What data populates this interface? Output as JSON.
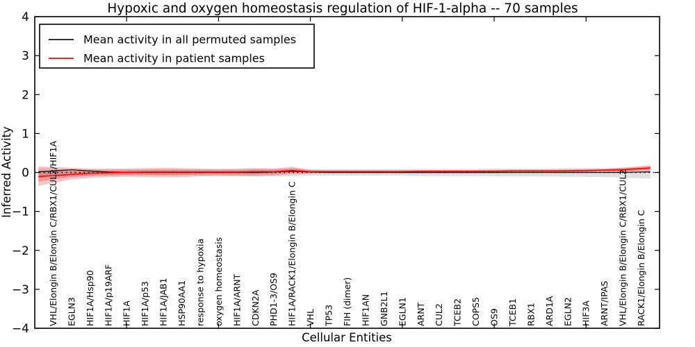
{
  "figure": {
    "title": "Hypoxic and oxygen homeostasis regulation of HIF-1-alpha -- 70 samples",
    "xlabel": "Cellular Entities",
    "ylabel": "Inferred Activity"
  },
  "legend": {
    "position": "upper left",
    "items": [
      {
        "label": "Mean activity in all permuted samples",
        "color": "#111111"
      },
      {
        "label": "Mean activity in patient samples",
        "color": "#ff0000"
      }
    ]
  },
  "axes": {
    "y_tick_labels": [
      "4",
      "3",
      "2",
      "1",
      "0",
      "−1",
      "−2",
      "−3",
      "−4"
    ],
    "y_tick_values": [
      4,
      3,
      2,
      1,
      0,
      -1,
      -2,
      -3,
      -4
    ],
    "x_tick_values": [
      5,
      10,
      15,
      20,
      25,
      30
    ]
  },
  "chart_data": {
    "type": "line",
    "title": "Hypoxic and oxygen homeostasis regulation of HIF-1-alpha -- 70 samples",
    "xlabel": "Cellular Entities",
    "ylabel": "Inferred Activity",
    "ylim": [
      -4,
      4
    ],
    "xlim": [
      0,
      34
    ],
    "grid": false,
    "zero_line_style": "dotted",
    "legend_position": "upper left",
    "categories": [
      "VHL/Elongin B/Elongin C/RBX1/CUL2/HIF1A",
      "EGLN3",
      "HIF1A/Hsp90",
      "HIF1A/p19ARF",
      "HIF1A",
      "HIF1A/p53",
      "HIF1A/JAB1",
      "HSP90AA1",
      "response to hypoxia",
      "oxygen homeostasis",
      "HIF1A/ARNT",
      "CDKN2A",
      "PHD1-3/OS9",
      "HIF1A/RACK1/Elongin B/Elongin C",
      "VHL",
      "TP53",
      "FIH (dimer)",
      "HIF1AN",
      "GNB2L1",
      "EGLN1",
      "ARNT",
      "CUL2",
      "TCEB2",
      "COPS5",
      "OS9",
      "TCEB1",
      "RBX1",
      "ARD1A",
      "EGLN2",
      "HIF3A",
      "ARNT/IPAS",
      "VHL/Elongin B/Elongin C/RBX1/CUL2",
      "RACK1/Elongin B/Elongin C"
    ],
    "series": [
      {
        "name": "Mean activity in all permuted samples",
        "color": "#111111",
        "values": [
          0.04,
          0.07,
          0.04,
          0.01,
          0,
          0,
          0,
          0,
          0,
          0,
          0,
          0,
          0.01,
          0.03,
          0.01,
          0,
          0,
          0,
          0,
          0,
          0,
          0,
          0,
          0,
          0,
          0,
          0,
          0,
          0,
          0,
          0,
          0,
          0.01
        ]
      },
      {
        "name": "Mean activity in patient samples",
        "color": "#ff0000",
        "values": [
          -0.08,
          -0.05,
          -0.02,
          -0.01,
          0,
          0.01,
          0.01,
          0.01,
          0.01,
          0.01,
          0.01,
          0.02,
          0.02,
          0.05,
          0.02,
          0.02,
          0.02,
          0.02,
          0.02,
          0.02,
          0.03,
          0.03,
          0.03,
          0.03,
          0.03,
          0.04,
          0.04,
          0.04,
          0.04,
          0.05,
          0.06,
          0.07,
          0.1
        ]
      }
    ],
    "bands": [
      {
        "name": "permuted samples range",
        "color": "#999999",
        "upper": [
          0.1,
          0.09,
          0.08,
          0.08,
          0.08,
          0.08,
          0.08,
          0.08,
          0.08,
          0.08,
          0.08,
          0.09,
          0.09,
          0.1,
          0.08,
          0.08,
          0.08,
          0.08,
          0.08,
          0.08,
          0.09,
          0.09,
          0.09,
          0.09,
          0.1,
          0.1,
          0.1,
          0.1,
          0.11,
          0.11,
          0.11,
          0.12,
          0.13
        ],
        "lower": [
          -0.12,
          -0.1,
          -0.09,
          -0.08,
          -0.08,
          -0.08,
          -0.08,
          -0.08,
          -0.08,
          -0.08,
          -0.08,
          -0.09,
          -0.09,
          -0.1,
          -0.08,
          -0.08,
          -0.08,
          -0.08,
          -0.08,
          -0.08,
          -0.09,
          -0.09,
          -0.09,
          -0.09,
          -0.1,
          -0.1,
          -0.1,
          -0.1,
          -0.11,
          -0.11,
          -0.12,
          -0.13,
          -0.15
        ]
      },
      {
        "name": "patient samples range",
        "color": "#e04040",
        "upper": [
          0.14,
          0.12,
          0.1,
          0.1,
          0.1,
          0.11,
          0.12,
          0.11,
          0.1,
          0.09,
          0.1,
          0.11,
          0.1,
          0.15,
          0.07,
          0.06,
          0.06,
          0.06,
          0.06,
          0.06,
          0.06,
          0.06,
          0.06,
          0.06,
          0.07,
          0.07,
          0.07,
          0.07,
          0.08,
          0.08,
          0.09,
          0.12,
          0.17
        ],
        "lower": [
          -0.27,
          -0.18,
          -0.14,
          -0.12,
          -0.11,
          -0.12,
          -0.13,
          -0.12,
          -0.1,
          -0.09,
          -0.1,
          -0.1,
          -0.08,
          -0.05,
          -0.03,
          -0.02,
          -0.02,
          -0.02,
          -0.02,
          -0.02,
          -0.02,
          -0.02,
          -0.02,
          -0.02,
          -0.02,
          -0.01,
          -0.01,
          -0.01,
          -0.01,
          -0.01,
          0.0,
          0.01,
          0.03
        ]
      }
    ]
  }
}
